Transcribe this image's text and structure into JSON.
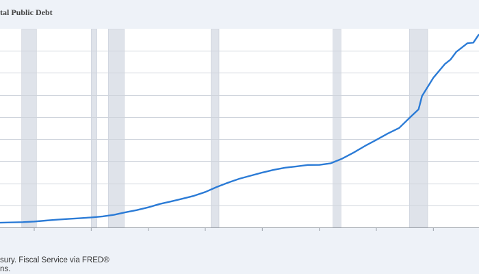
{
  "title": "tal Public Debt",
  "source_line1": "sury. Fiscal Service via FRED®",
  "source_line2": "ns.",
  "colors": {
    "background": "#eef2f8",
    "plot_bg": "#ffffff",
    "line": "#2b7bd6",
    "recession": "#dfe3ea",
    "grid": "#cfd4dc"
  },
  "chart_data": {
    "type": "line",
    "title": "tal Public Debt",
    "xlabel": "",
    "ylabel": "",
    "xlim": [
      1972.0,
      2014.0
    ],
    "ylim": [
      0,
      18000000
    ],
    "x_ticks": [
      1975,
      1980,
      1985,
      1990,
      1995,
      2000,
      2005,
      2010
    ],
    "y_gridlines": [
      0,
      2000000,
      4000000,
      6000000,
      8000000,
      10000000,
      12000000,
      14000000,
      16000000
    ],
    "grid": true,
    "recessions": [
      [
        1973.9,
        1975.2
      ],
      [
        1980.0,
        1980.5
      ],
      [
        1981.5,
        1982.9
      ],
      [
        1990.5,
        1991.2
      ],
      [
        2001.2,
        2001.9
      ],
      [
        2007.9,
        2009.5
      ]
    ],
    "series": [
      {
        "values_x": [
          1972,
          1974,
          1975,
          1976,
          1977,
          1978,
          1979,
          1980,
          1981,
          1982,
          1983,
          1984,
          1985,
          1986,
          1987,
          1988,
          1989,
          1990,
          1991,
          1992,
          1993,
          1994,
          1995,
          1996,
          1997,
          1998,
          1999,
          2000,
          2001,
          2002,
          2003,
          2004,
          2005,
          2006,
          2007,
          2008,
          2008.7,
          2009,
          2010,
          2011,
          2011.5,
          2012,
          2013,
          2013.5,
          2014
        ],
        "values_y": [
          430000,
          475000,
          533000,
          620000,
          700000,
          770000,
          830000,
          908000,
          998000,
          1140000,
          1370000,
          1570000,
          1820000,
          2120000,
          2350000,
          2600000,
          2860000,
          3210000,
          3660000,
          4060000,
          4410000,
          4690000,
          4970000,
          5220000,
          5410000,
          5530000,
          5660000,
          5670000,
          5810000,
          6230000,
          6780000,
          7380000,
          7930000,
          8510000,
          9010000,
          10020000,
          10700000,
          11900000,
          13560000,
          14800000,
          15200000,
          15900000,
          16700000,
          16740000,
          17500000
        ]
      }
    ]
  }
}
